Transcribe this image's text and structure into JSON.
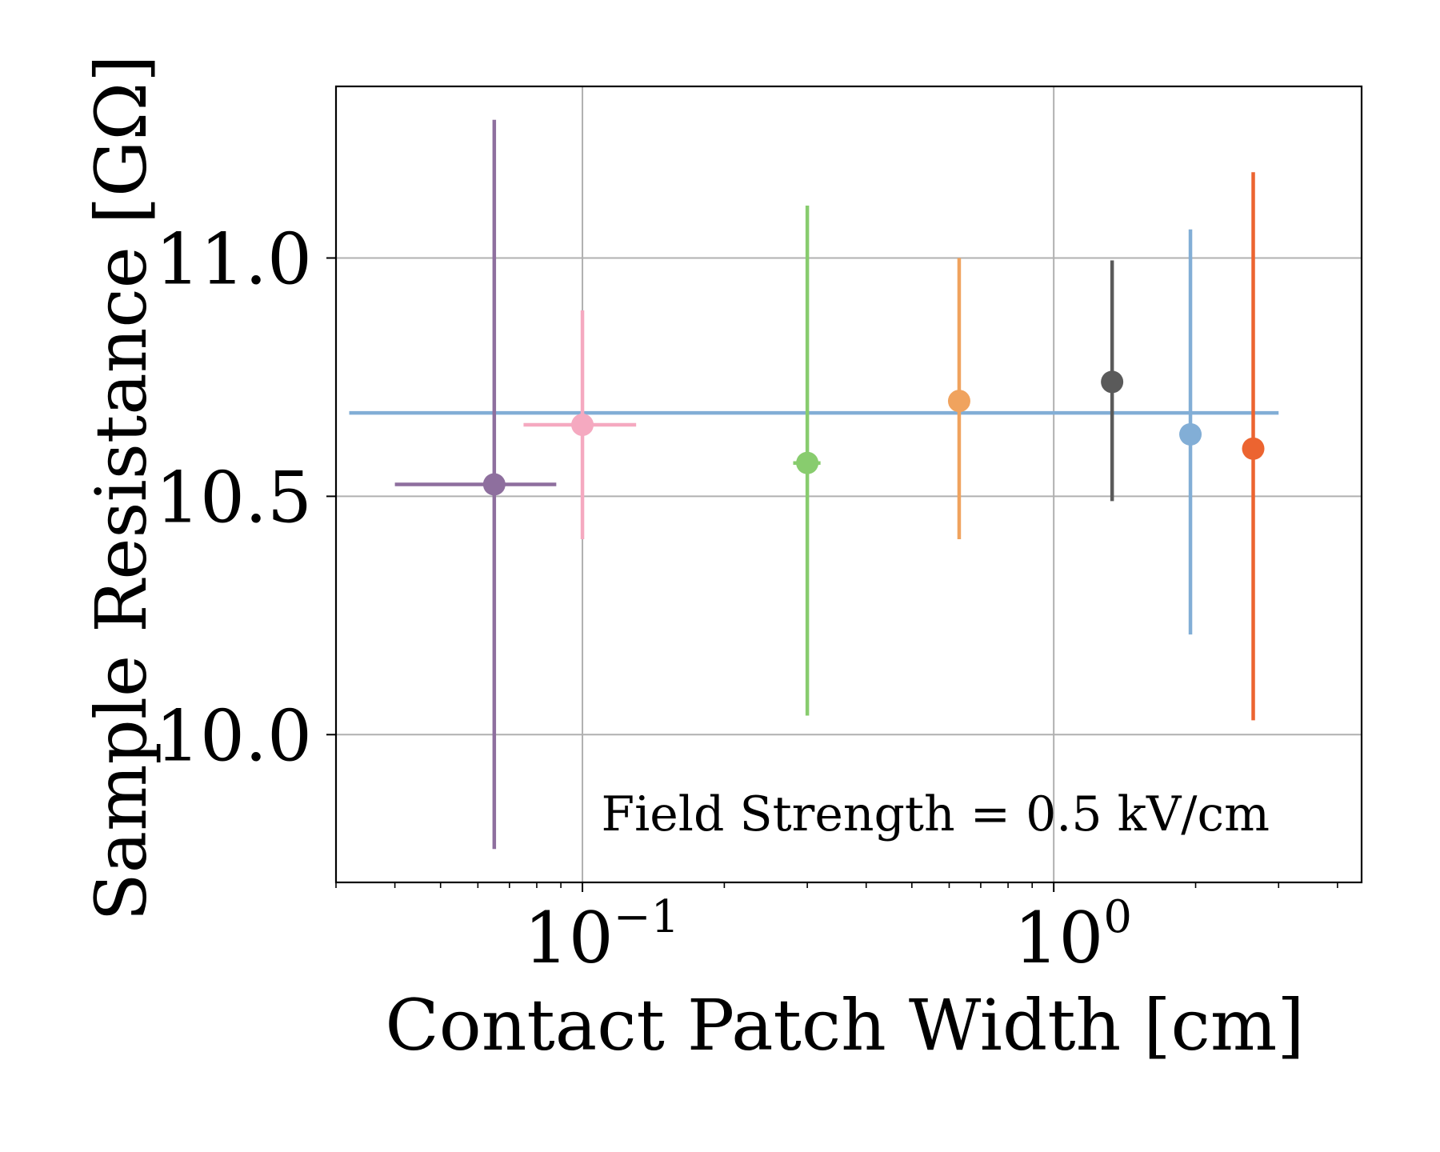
{
  "chart_data": {
    "type": "scatter",
    "title": "",
    "xlabel": "Contact Patch Width [cm]",
    "ylabel": "Sample Resistance [GΩ]",
    "x_scale": "log",
    "xlim": [
      0.03,
      4.5
    ],
    "ylim": [
      9.69,
      11.36
    ],
    "grid": true,
    "x_ticks": [
      {
        "value": 0.1,
        "base": "10",
        "exp": "−1"
      },
      {
        "value": 1,
        "base": "10",
        "exp": "0"
      }
    ],
    "y_ticks": [
      {
        "value": 10.0,
        "label": "10.0"
      },
      {
        "value": 10.5,
        "label": "10.5"
      },
      {
        "value": 11.0,
        "label": "11.0"
      }
    ],
    "reference_line": {
      "y": 10.675,
      "x_range": [
        0.032,
        3.0
      ],
      "color": "#82aed6"
    },
    "annotation": "Field Strength = 0.5 kV/cm",
    "points": [
      {
        "x": 0.065,
        "y": 10.525,
        "x_low": 0.04,
        "x_high": 0.088,
        "y_low": 9.76,
        "y_high": 11.29,
        "color": "#8e6f9e"
      },
      {
        "x": 0.1,
        "y": 10.65,
        "x_low": 0.075,
        "x_high": 0.13,
        "y_low": 10.41,
        "y_high": 10.89,
        "color": "#f5a9c0"
      },
      {
        "x": 0.3,
        "y": 10.57,
        "x_low": 0.28,
        "x_high": 0.32,
        "y_low": 10.04,
        "y_high": 11.11,
        "color": "#88cc6e"
      },
      {
        "x": 0.63,
        "y": 10.7,
        "y_low": 10.41,
        "y_high": 11.0,
        "color": "#f0a35e"
      },
      {
        "x": 1.33,
        "y": 10.74,
        "y_low": 10.49,
        "y_high": 10.995,
        "color": "#5a5a5a"
      },
      {
        "x": 1.95,
        "y": 10.63,
        "y_low": 10.21,
        "y_high": 11.06,
        "color": "#82aed6"
      },
      {
        "x": 2.65,
        "y": 10.6,
        "y_low": 10.03,
        "y_high": 11.18,
        "color": "#ec6430"
      }
    ]
  }
}
